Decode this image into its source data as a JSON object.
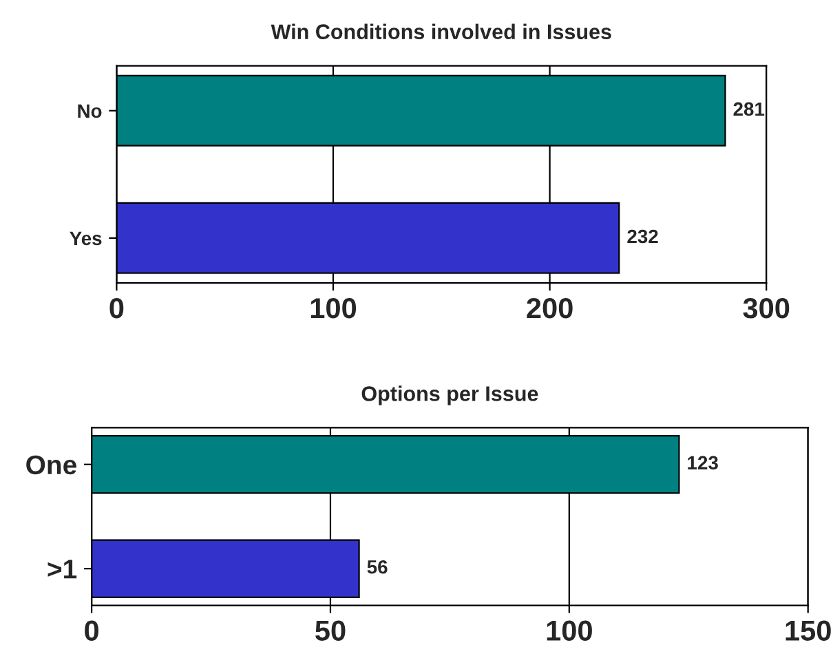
{
  "chart_data": [
    {
      "type": "bar",
      "orientation": "horizontal",
      "title": "Win Conditions involved in Issues",
      "categories": [
        "No",
        "Yes"
      ],
      "values": [
        281,
        232
      ],
      "colors": [
        "#008080",
        "#3333cc"
      ],
      "xlim": [
        0,
        300
      ],
      "xticks": [
        0,
        100,
        200,
        300
      ],
      "grid": "x",
      "data_labels": true
    },
    {
      "type": "bar",
      "orientation": "horizontal",
      "title": "Options per Issue",
      "categories": [
        "One",
        ">1"
      ],
      "values": [
        123,
        56
      ],
      "colors": [
        "#008080",
        "#3333cc"
      ],
      "xlim": [
        0,
        150
      ],
      "xticks": [
        0,
        50,
        100,
        150
      ],
      "grid": "x",
      "data_labels": true
    }
  ]
}
